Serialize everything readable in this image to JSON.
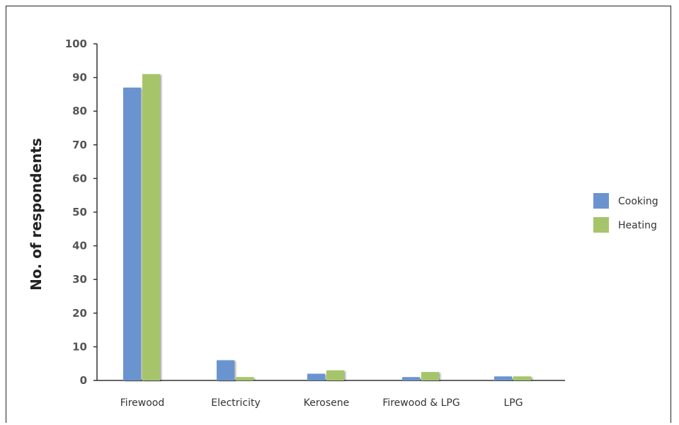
{
  "chart_data": {
    "type": "bar",
    "title": "",
    "xlabel": "",
    "ylabel": "No. of respondents",
    "ylim": [
      0,
      100
    ],
    "yticks": [
      0,
      10,
      20,
      30,
      40,
      50,
      60,
      70,
      80,
      90,
      100
    ],
    "categories": [
      "Firewood",
      "Electricity",
      "Kerosene",
      "Firewood & LPG",
      "LPG"
    ],
    "series": [
      {
        "name": "Cooking",
        "color": "#6b94cf",
        "values": [
          87,
          6,
          2,
          1,
          1.2
        ]
      },
      {
        "name": "Heating",
        "color": "#a6c56b",
        "values": [
          91,
          1,
          3,
          2.5,
          1.2
        ]
      }
    ],
    "legend": "right",
    "grid": false
  }
}
